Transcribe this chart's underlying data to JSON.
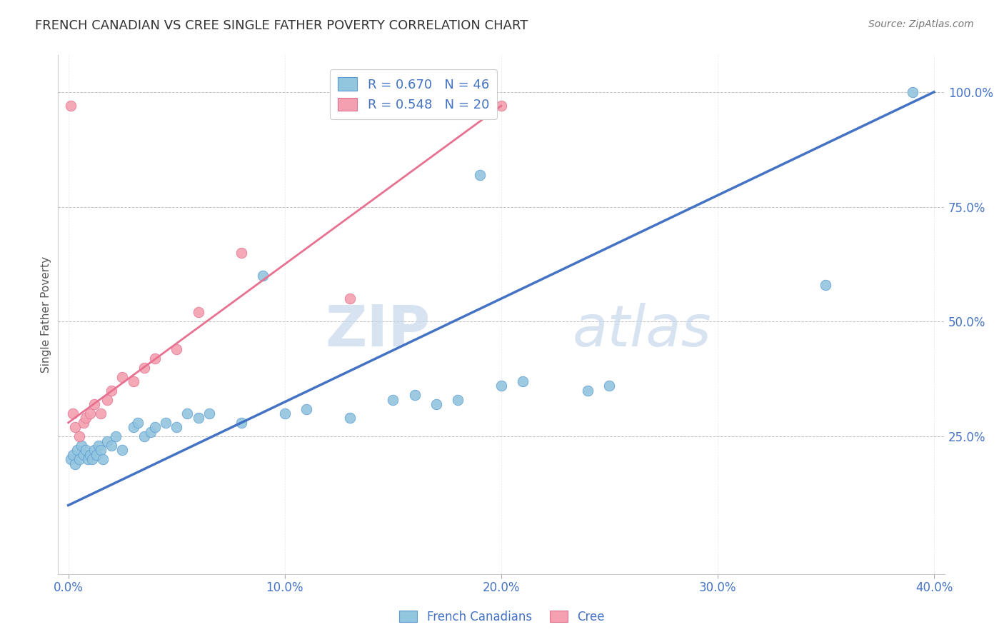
{
  "title": "FRENCH CANADIAN VS CREE SINGLE FATHER POVERTY CORRELATION CHART",
  "source_text": "Source: ZipAtlas.com",
  "ylabel": "Single Father Poverty",
  "xlim": [
    -0.005,
    0.405
  ],
  "ylim": [
    -0.05,
    1.08
  ],
  "xticks": [
    0.0,
    0.1,
    0.2,
    0.3,
    0.4
  ],
  "xtick_labels": [
    "0.0%",
    "10.0%",
    "20.0%",
    "30.0%",
    "40.0%"
  ],
  "ytick_positions": [
    0.25,
    0.5,
    0.75,
    1.0
  ],
  "ytick_labels": [
    "25.0%",
    "50.0%",
    "75.0%",
    "100.0%"
  ],
  "fr_R": 0.67,
  "fr_N": 46,
  "cree_R": 0.548,
  "cree_N": 20,
  "blue_scatter": "#92C5DE",
  "pink_scatter": "#F4A0B0",
  "blue_edge": "#5B9BD5",
  "pink_edge": "#E07090",
  "line_blue": "#4472C4",
  "line_pink": "#E87090",
  "legend_label_fr": "French Canadians",
  "legend_label_cree": "Cree",
  "watermark_zip": "ZIP",
  "watermark_atlas": "atlas",
  "fr_line_x0": 0.0,
  "fr_line_y0": 0.1,
  "fr_line_x1": 0.4,
  "fr_line_y1": 1.0,
  "cr_line_x0": 0.0,
  "cr_line_y0": 0.28,
  "cr_line_x1": 0.2,
  "cr_line_y1": 0.97,
  "french_x": [
    0.001,
    0.002,
    0.003,
    0.004,
    0.005,
    0.006,
    0.007,
    0.008,
    0.009,
    0.01,
    0.011,
    0.012,
    0.013,
    0.014,
    0.015,
    0.016,
    0.018,
    0.02,
    0.022,
    0.025,
    0.03,
    0.032,
    0.035,
    0.038,
    0.04,
    0.045,
    0.05,
    0.055,
    0.06,
    0.065,
    0.08,
    0.09,
    0.1,
    0.11,
    0.13,
    0.15,
    0.16,
    0.17,
    0.18,
    0.19,
    0.2,
    0.21,
    0.24,
    0.25,
    0.35,
    0.39
  ],
  "french_y": [
    0.2,
    0.21,
    0.19,
    0.22,
    0.2,
    0.23,
    0.21,
    0.22,
    0.2,
    0.21,
    0.2,
    0.22,
    0.21,
    0.23,
    0.22,
    0.2,
    0.24,
    0.23,
    0.25,
    0.22,
    0.27,
    0.28,
    0.25,
    0.26,
    0.27,
    0.28,
    0.27,
    0.3,
    0.29,
    0.3,
    0.28,
    0.6,
    0.3,
    0.31,
    0.29,
    0.33,
    0.34,
    0.32,
    0.33,
    0.82,
    0.36,
    0.37,
    0.35,
    0.36,
    0.58,
    1.0
  ],
  "cree_x": [
    0.001,
    0.002,
    0.003,
    0.005,
    0.007,
    0.008,
    0.01,
    0.012,
    0.015,
    0.018,
    0.02,
    0.025,
    0.03,
    0.035,
    0.04,
    0.05,
    0.06,
    0.08,
    0.13,
    0.2
  ],
  "cree_y": [
    0.97,
    0.3,
    0.27,
    0.25,
    0.28,
    0.29,
    0.3,
    0.32,
    0.3,
    0.33,
    0.35,
    0.38,
    0.37,
    0.4,
    0.42,
    0.44,
    0.52,
    0.65,
    0.55,
    0.97
  ]
}
